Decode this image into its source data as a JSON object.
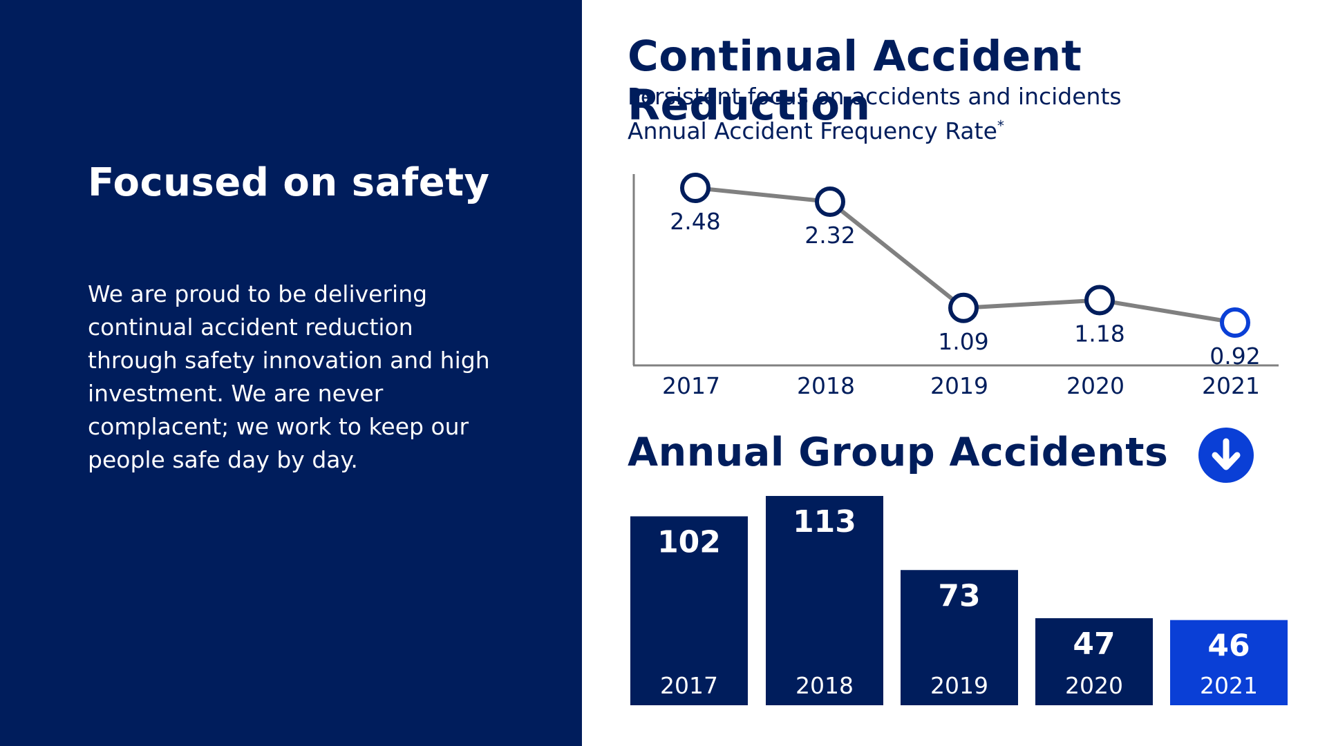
{
  "left": {
    "title": "Focused on safety",
    "body": "We are proud to be delivering continual accident reduction through safety innovation and high investment. We are never complacent; we work to keep our people safe day by day."
  },
  "right": {
    "title": "Continual Accident Reduction",
    "subtitle": "Persistent focus on accidents and incidents",
    "line_title": "Annual Accident Frequency Rate",
    "line_title_marker": "*",
    "bars_title": "Annual Group Accidents",
    "bars_icon": "arrow-down-icon"
  },
  "colors": {
    "navy": "#001d5c",
    "highlight_blue": "#0a3fd6",
    "line_gray": "#808080"
  },
  "chart_data": [
    {
      "type": "line",
      "title": "Annual Accident Frequency Rate*",
      "x": [
        "2017",
        "2018",
        "2019",
        "2020",
        "2021"
      ],
      "values": [
        2.48,
        2.32,
        1.09,
        1.18,
        0.92
      ],
      "highlight_index": 4,
      "grid": false
    },
    {
      "type": "bar",
      "title": "Annual Group Accidents",
      "categories": [
        "2017",
        "2018",
        "2019",
        "2020",
        "2021"
      ],
      "values": [
        102,
        113,
        73,
        47,
        46
      ],
      "highlight_index": 4,
      "grid": false
    }
  ]
}
